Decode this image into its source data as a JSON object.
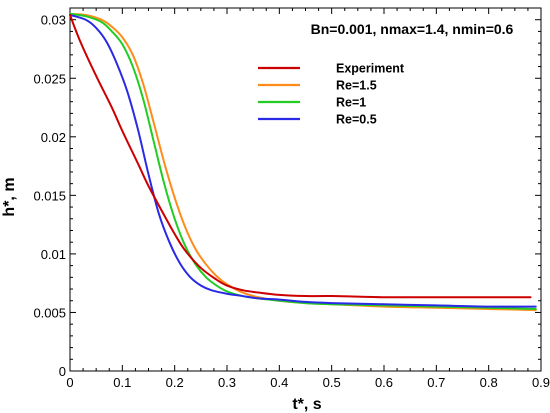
{
  "chart_data": {
    "type": "line",
    "title": "",
    "annotation": "Bn=0.001, nmax=1.4, nmin=0.6",
    "xlabel": "t*, s",
    "ylabel": "h*, m",
    "xlim": [
      0,
      0.9
    ],
    "ylim": [
      0,
      0.031
    ],
    "xticks": [
      "0",
      "0.1",
      "0.2",
      "0.3",
      "0.4",
      "0.5",
      "0.6",
      "0.7",
      "0.8",
      "0.9"
    ],
    "xtick_values": [
      0,
      0.1,
      0.2,
      0.3,
      0.4,
      0.5,
      0.6,
      0.7,
      0.8,
      0.9
    ],
    "yticks": [
      "0",
      "0.005",
      "0.01",
      "0.015",
      "0.02",
      "0.025",
      "0.03"
    ],
    "ytick_values": [
      0,
      0.005,
      0.01,
      0.015,
      0.02,
      0.025,
      0.03
    ],
    "grid": false,
    "legend_position": "top-right",
    "series": [
      {
        "name": "Experiment",
        "color": "#cc0000",
        "x": [
          0,
          0.02,
          0.05,
          0.08,
          0.1,
          0.13,
          0.15,
          0.18,
          0.2,
          0.22,
          0.25,
          0.28,
          0.3,
          0.33,
          0.36,
          0.4,
          0.45,
          0.5,
          0.6,
          0.7,
          0.8,
          0.88
        ],
        "y": [
          0.0304,
          0.0281,
          0.0252,
          0.0225,
          0.0205,
          0.0177,
          0.0158,
          0.0133,
          0.0117,
          0.0103,
          0.0088,
          0.0078,
          0.0073,
          0.0069,
          0.0067,
          0.0065,
          0.0064,
          0.0064,
          0.0063,
          0.0063,
          0.0063,
          0.0063
        ]
      },
      {
        "name": "Re=1.5",
        "color": "#ff8c1a",
        "x": [
          0,
          0.03,
          0.06,
          0.08,
          0.1,
          0.12,
          0.14,
          0.16,
          0.18,
          0.2,
          0.22,
          0.24,
          0.26,
          0.28,
          0.3,
          0.33,
          0.36,
          0.4,
          0.45,
          0.5,
          0.6,
          0.7,
          0.8,
          0.89
        ],
        "y": [
          0.0305,
          0.0304,
          0.03,
          0.0294,
          0.0285,
          0.027,
          0.0245,
          0.0212,
          0.0178,
          0.0148,
          0.0123,
          0.0104,
          0.0091,
          0.0081,
          0.0074,
          0.0067,
          0.0063,
          0.006,
          0.0058,
          0.0057,
          0.0055,
          0.0054,
          0.0053,
          0.0052
        ]
      },
      {
        "name": "Re=1",
        "color": "#22cc22",
        "x": [
          0,
          0.03,
          0.06,
          0.08,
          0.1,
          0.12,
          0.14,
          0.16,
          0.18,
          0.2,
          0.22,
          0.24,
          0.26,
          0.28,
          0.3,
          0.33,
          0.36,
          0.4,
          0.45,
          0.5,
          0.6,
          0.7,
          0.8,
          0.89
        ],
        "y": [
          0.0305,
          0.0303,
          0.0298,
          0.029,
          0.0279,
          0.026,
          0.0232,
          0.0196,
          0.016,
          0.013,
          0.0107,
          0.0091,
          0.008,
          0.0073,
          0.0068,
          0.0064,
          0.0062,
          0.006,
          0.0058,
          0.0057,
          0.0056,
          0.0055,
          0.0054,
          0.0053
        ]
      },
      {
        "name": "Re=0.5",
        "color": "#2a2ae6",
        "x": [
          0,
          0.03,
          0.05,
          0.07,
          0.09,
          0.11,
          0.13,
          0.15,
          0.17,
          0.19,
          0.21,
          0.23,
          0.25,
          0.27,
          0.3,
          0.33,
          0.36,
          0.4,
          0.45,
          0.5,
          0.6,
          0.7,
          0.8,
          0.89
        ],
        "y": [
          0.0304,
          0.03,
          0.0293,
          0.0281,
          0.0262,
          0.0238,
          0.0206,
          0.0168,
          0.0134,
          0.011,
          0.0092,
          0.008,
          0.0073,
          0.0069,
          0.0066,
          0.0064,
          0.0062,
          0.0061,
          0.0059,
          0.0058,
          0.0057,
          0.0056,
          0.0055,
          0.0055
        ]
      }
    ]
  }
}
